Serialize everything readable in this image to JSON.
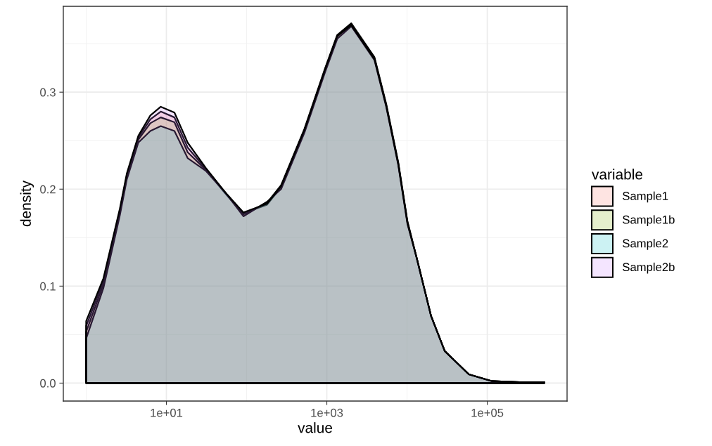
{
  "chart_data": {
    "type": "area",
    "xlabel": "value",
    "ylabel": "density",
    "legend_title": "variable",
    "log": "x",
    "x": [
      1,
      1.64,
      2.63,
      3.21,
      4.47,
      6.31,
      8.51,
      12.6,
      18.4,
      30.9,
      53.7,
      91.2,
      180,
      269,
      525,
      955,
      1349,
      2018,
      3926,
      5495,
      7762,
      10116,
      13183,
      19953,
      29512,
      58884,
      114815,
      251189,
      512861
    ],
    "series": [
      {
        "name": "Sample1",
        "color": "#f8766d",
        "values": [
          0.059,
          0.105,
          0.178,
          0.214,
          0.253,
          0.272,
          0.28,
          0.274,
          0.243,
          0.221,
          0.197,
          0.175,
          0.184,
          0.202,
          0.26,
          0.323,
          0.357,
          0.37,
          0.335,
          0.287,
          0.227,
          0.166,
          0.129,
          0.069,
          0.033,
          0.009,
          0.002,
          0.001,
          0.001
        ]
      },
      {
        "name": "Sample1b",
        "color": "#7cae00",
        "values": [
          0.053,
          0.102,
          0.176,
          0.212,
          0.251,
          0.268,
          0.274,
          0.269,
          0.238,
          0.22,
          0.196,
          0.174,
          0.186,
          0.204,
          0.262,
          0.325,
          0.359,
          0.371,
          0.336,
          0.288,
          0.228,
          0.167,
          0.129,
          0.069,
          0.033,
          0.009,
          0.002,
          0.001,
          0.001
        ]
      },
      {
        "name": "Sample2",
        "color": "#00bfc4",
        "values": [
          0.046,
          0.098,
          0.173,
          0.21,
          0.248,
          0.26,
          0.265,
          0.26,
          0.232,
          0.219,
          0.197,
          0.172,
          0.187,
          0.2,
          0.258,
          0.321,
          0.355,
          0.368,
          0.333,
          0.285,
          0.225,
          0.164,
          0.129,
          0.069,
          0.033,
          0.009,
          0.002,
          0.001,
          0.001
        ]
      },
      {
        "name": "Sample2b",
        "color": "#c77cff",
        "values": [
          0.064,
          0.108,
          0.18,
          0.216,
          0.255,
          0.276,
          0.285,
          0.279,
          0.248,
          0.222,
          0.197,
          0.176,
          0.185,
          0.203,
          0.261,
          0.324,
          0.358,
          0.369,
          0.334,
          0.286,
          0.226,
          0.165,
          0.129,
          0.069,
          0.033,
          0.009,
          0.002,
          0.001,
          0.001
        ]
      }
    ],
    "xlim": [
      0.519,
      988000
    ],
    "xticks": [
      {
        "value": 10,
        "label": "1e+01"
      },
      {
        "value": 1000,
        "label": "1e+03"
      },
      {
        "value": 100000,
        "label": "1e+05"
      }
    ],
    "ylim": [
      -0.0185,
      0.3885
    ],
    "yticks": [
      {
        "value": 0,
        "label": "0.0"
      },
      {
        "value": 0.1,
        "label": "0.1"
      },
      {
        "value": 0.2,
        "label": "0.2"
      },
      {
        "value": 0.3,
        "label": "0.3"
      }
    ],
    "grid": true,
    "legend": "right"
  }
}
